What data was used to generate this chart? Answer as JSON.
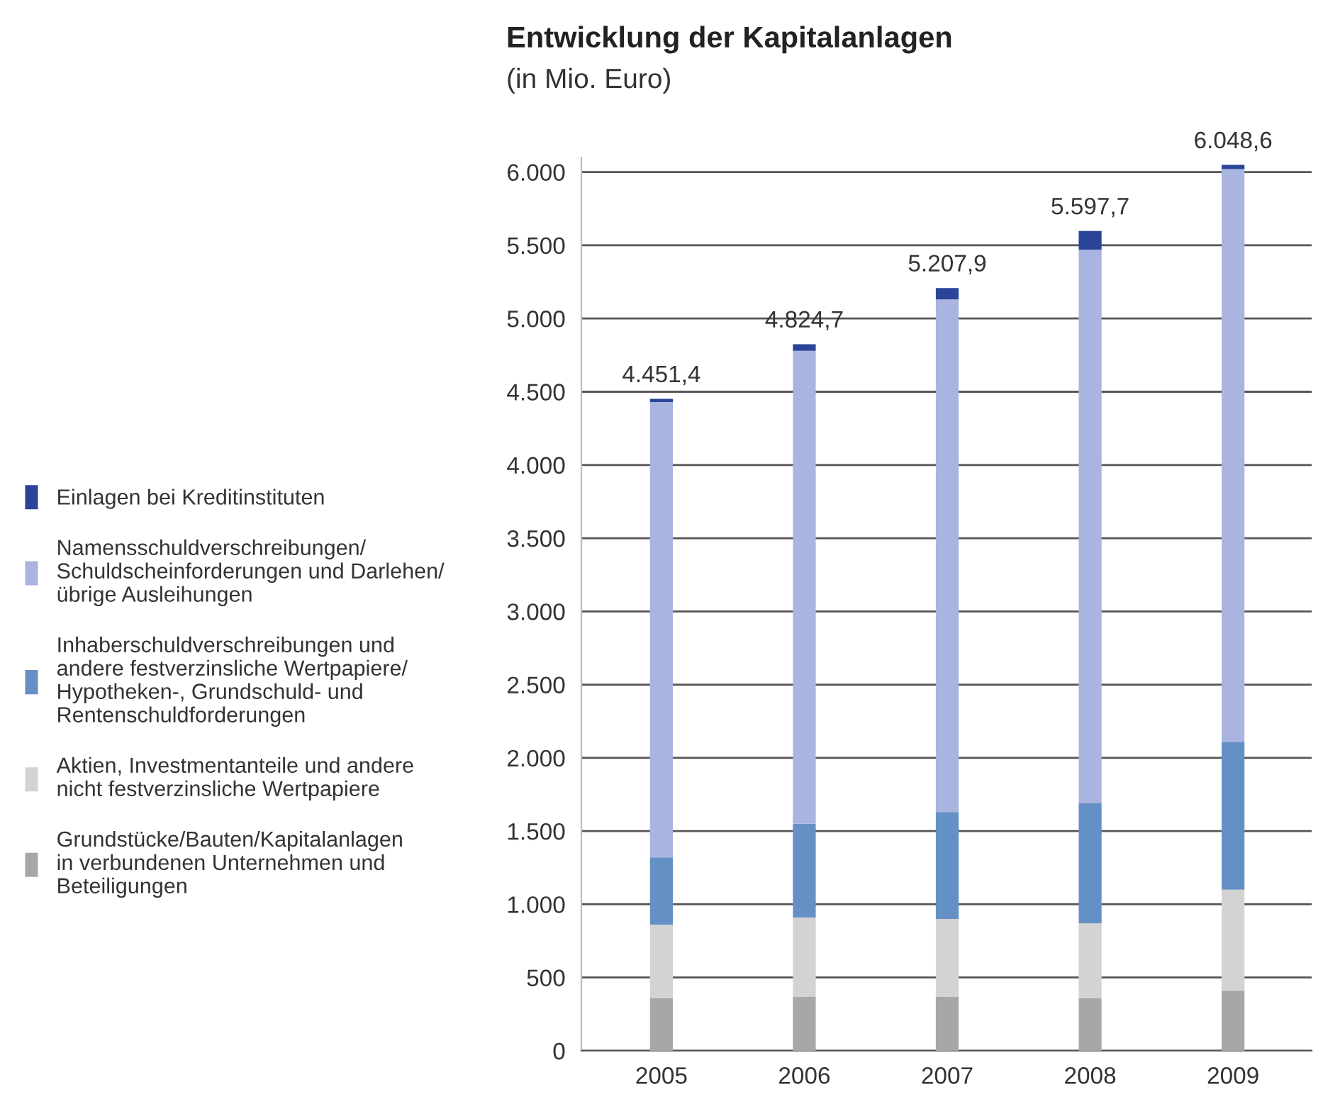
{
  "chart_data": {
    "type": "bar",
    "title": "Entwicklung der Kapitalanlagen",
    "subtitle": "(in Mio. Euro)",
    "categories": [
      "2005",
      "2006",
      "2007",
      "2008",
      "2009"
    ],
    "stacked": true,
    "series": [
      {
        "name": "Grundstücke/Bauten/Kapitalanlagen\nin verbundenen Unternehmen und\nBeteiligungen",
        "color": "#a6a8a7",
        "values": [
          360,
          370,
          370,
          360,
          410
        ]
      },
      {
        "name": "Aktien, Investmentanteile und andere\nnicht festverzinsliche Wertpapiere",
        "color": "#d3d3d3",
        "values": [
          500,
          540,
          530,
          510,
          690
        ]
      },
      {
        "name": "Inhaberschuldverschreibungen und\nandere festverzinsliche Wertpapiere/\nHypotheken-, Grundschuld- und\nRentenschuldforderungen",
        "color": "#6590c6",
        "values": [
          460,
          640,
          730,
          820,
          1010
        ]
      },
      {
        "name": "Namensschuldverschreibungen/\nSchuldscheinforderungen und Darlehen/\nübrige Ausleihungen",
        "color": "#a9b5e0",
        "values": [
          3110,
          3230,
          3500,
          3780,
          3910
        ]
      },
      {
        "name": "Einlagen bei Kreditinstituten",
        "color": "#2a4598",
        "values": [
          21.4,
          44.7,
          77.9,
          127.7,
          28.6
        ]
      }
    ],
    "totals": [
      "4.451,4",
      "4.824,7",
      "5.207,9",
      "5.597,7",
      "6.048,6"
    ],
    "ylim": [
      0,
      6100
    ],
    "yticks": [
      0,
      {
        "value": 500,
        "label": "500"
      },
      {
        "value": 1000,
        "label": "1.000"
      },
      {
        "value": 1500,
        "label": "1.500"
      },
      {
        "value": 2000,
        "label": "2.000"
      },
      {
        "value": 2500,
        "label": "2.500"
      },
      {
        "value": 3000,
        "label": "3.000"
      },
      {
        "value": 3500,
        "label": "3.500"
      },
      {
        "value": 4000,
        "label": "4.000"
      },
      {
        "value": 4500,
        "label": "4.500"
      },
      {
        "value": 5000,
        "label": "5.000"
      },
      {
        "value": 5500,
        "label": "5.500"
      },
      {
        "value": 6000,
        "label": "6.000"
      }
    ],
    "grid": "y",
    "legend": "left"
  }
}
